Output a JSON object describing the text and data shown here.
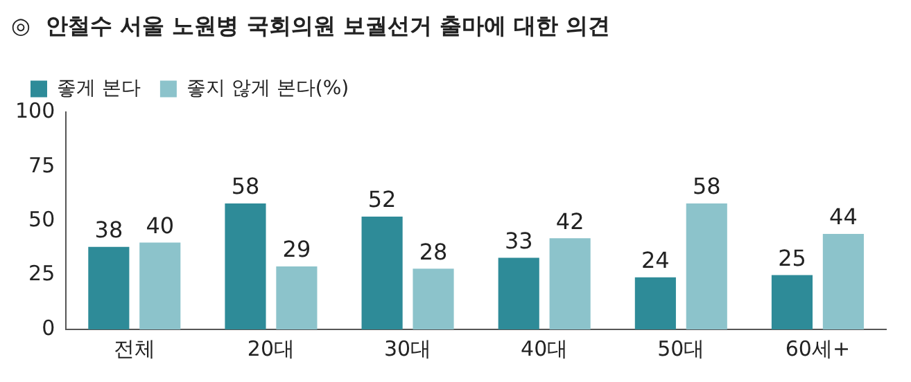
{
  "chart_data": {
    "type": "bar",
    "title": "◎  안철수 서울 노원병 국회의원 보궐선거 출마에 대한 의견",
    "categories": [
      "전체",
      "20대",
      "30대",
      "40대",
      "50대",
      "60세+"
    ],
    "series": [
      {
        "name": "좋게 본다",
        "color": "#2e8b98",
        "values": [
          38,
          58,
          52,
          33,
          24,
          25
        ]
      },
      {
        "name": "좋지 않게 본다(%)",
        "color": "#8cc3cb",
        "values": [
          40,
          29,
          28,
          42,
          58,
          44
        ]
      }
    ],
    "ylim": [
      0,
      100
    ],
    "yticks": [
      0,
      25,
      50,
      75,
      100
    ],
    "grid": false,
    "legend": "top left",
    "data_labels": true
  }
}
